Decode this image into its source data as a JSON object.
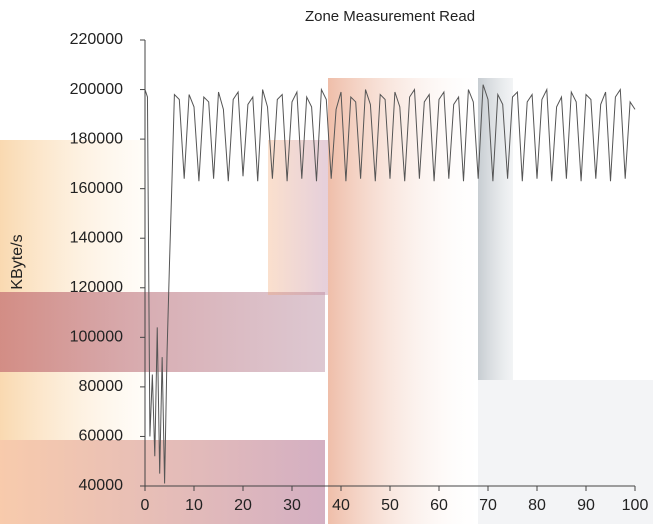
{
  "chart_data": {
    "type": "line",
    "title": "Zone Measurement Read",
    "y_label": "KByte/s",
    "x": [
      0,
      0.5,
      1,
      1.5,
      2,
      2.5,
      3,
      3.5,
      4,
      4.5,
      5,
      5.5,
      6,
      7,
      8,
      9,
      10,
      11,
      12,
      13,
      14,
      15,
      16,
      17,
      18,
      19,
      20,
      21,
      22,
      23,
      24,
      25,
      26,
      27,
      28,
      29,
      30,
      31,
      32,
      33,
      34,
      35,
      36,
      37,
      38,
      39,
      40,
      41,
      42,
      43,
      44,
      45,
      46,
      47,
      48,
      49,
      50,
      51,
      52,
      53,
      54,
      55,
      56,
      57,
      58,
      59,
      60,
      61,
      62,
      63,
      64,
      65,
      66,
      67,
      68,
      69,
      70,
      71,
      72,
      73,
      74,
      75,
      76,
      77,
      78,
      79,
      80,
      81,
      82,
      83,
      84,
      85,
      86,
      87,
      88,
      89,
      90,
      91,
      92,
      93,
      94,
      95,
      96,
      97,
      98,
      99,
      100
    ],
    "values": [
      200000,
      197000,
      60000,
      85000,
      52000,
      104000,
      45000,
      92000,
      41000,
      94000,
      130000,
      163000,
      198000,
      196000,
      164000,
      198000,
      193000,
      163000,
      197000,
      195000,
      164000,
      199000,
      192000,
      163000,
      196000,
      199000,
      165000,
      194000,
      197000,
      163000,
      200000,
      193000,
      164000,
      196000,
      198000,
      163000,
      195000,
      199000,
      164000,
      197000,
      193000,
      163000,
      200000,
      196000,
      164000,
      192000,
      199000,
      163000,
      197000,
      195000,
      164000,
      200000,
      194000,
      163000,
      198000,
      196000,
      164000,
      199000,
      193000,
      163000,
      197000,
      200000,
      164000,
      195000,
      198000,
      163000,
      196000,
      199000,
      164000,
      194000,
      197000,
      163000,
      200000,
      195000,
      164000,
      202000,
      196000,
      163000,
      198000,
      194000,
      164000,
      197000,
      199000,
      163000,
      195000,
      198000,
      164000,
      196000,
      200000,
      163000,
      193000,
      197000,
      164000,
      199000,
      195000,
      163000,
      198000,
      196000,
      164000,
      194000,
      199000,
      163000,
      197000,
      200000,
      164000,
      195000,
      192000
    ],
    "color": "#555555",
    "xlim": [
      0,
      100
    ],
    "xticks": [
      0,
      10,
      20,
      30,
      40,
      50,
      60,
      70,
      80,
      90,
      100
    ],
    "ylim": [
      40000,
      220000
    ],
    "yticks": [
      40000,
      60000,
      80000,
      100000,
      120000,
      140000,
      160000,
      180000,
      200000,
      220000
    ]
  }
}
